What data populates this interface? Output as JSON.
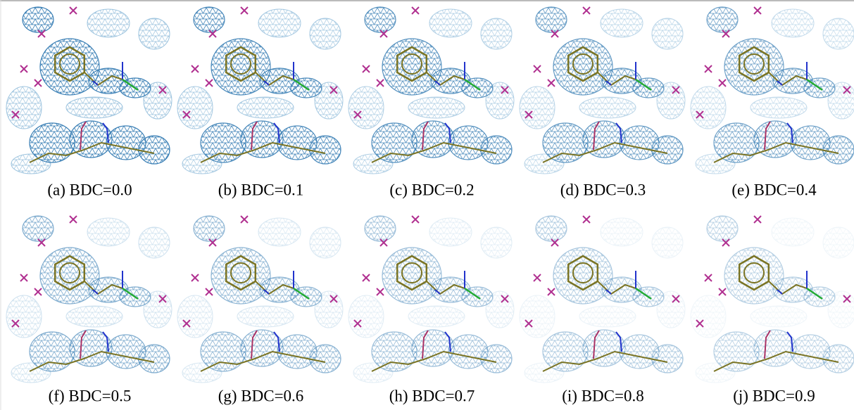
{
  "panels": [
    {
      "caption": "(a) BDC=0.0"
    },
    {
      "caption": "(b) BDC=0.1"
    },
    {
      "caption": "(c) BDC=0.2"
    },
    {
      "caption": "(d) BDC=0.3"
    },
    {
      "caption": "(e) BDC=0.4"
    },
    {
      "caption": "(f) BDC=0.5"
    },
    {
      "caption": "(g) BDC=0.6"
    },
    {
      "caption": "(h) BDC=0.7"
    },
    {
      "caption": "(i) BDC=0.8"
    },
    {
      "caption": "(j) BDC=0.9"
    }
  ]
}
